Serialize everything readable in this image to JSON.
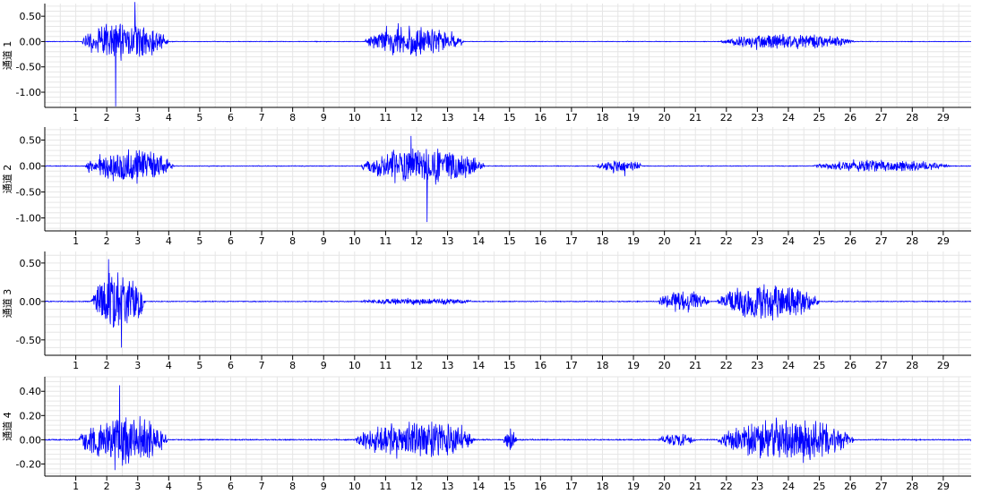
{
  "colors": {
    "signal": "#0000ff",
    "grid": "#e6e6e6",
    "axis": "#000000",
    "background": "#ffffff"
  },
  "chart_data": [
    {
      "type": "line",
      "ylabel": "通道 1",
      "xlim": [
        0,
        29.9
      ],
      "ylim": [
        -1.3,
        0.75
      ],
      "x_ticks": [
        1,
        2,
        3,
        4,
        5,
        6,
        7,
        8,
        9,
        10,
        11,
        12,
        13,
        14,
        15,
        16,
        17,
        18,
        19,
        20,
        21,
        22,
        23,
        24,
        25,
        26,
        27,
        28,
        29
      ],
      "y_ticks": [
        0.5,
        0.0,
        -0.5,
        -1.0
      ],
      "y_tick_labels": [
        "0.50",
        "0.00",
        "-0.50",
        "-1.00"
      ],
      "grid": true,
      "series": [
        {
          "peak_min": -1.28,
          "peak_max": 0.78,
          "noise": 0.005,
          "bursts": [
            {
              "start": 1.2,
              "end": 4.4,
              "amp": 0.45
            },
            {
              "start": 10.3,
              "end": 14.0,
              "amp": 0.33
            },
            {
              "start": 21.8,
              "end": 26.8,
              "amp": 0.18
            }
          ]
        }
      ]
    },
    {
      "type": "line",
      "ylabel": "通道 2",
      "xlim": [
        0,
        29.9
      ],
      "ylim": [
        -1.25,
        0.75
      ],
      "x_ticks": [
        1,
        2,
        3,
        4,
        5,
        6,
        7,
        8,
        9,
        10,
        11,
        12,
        13,
        14,
        15,
        16,
        17,
        18,
        19,
        20,
        21,
        22,
        23,
        24,
        25,
        26,
        27,
        28,
        29
      ],
      "y_ticks": [
        0.5,
        0.0,
        -0.5,
        -1.0
      ],
      "y_tick_labels": [
        "0.50",
        "0.00",
        "-0.50",
        "-1.00"
      ],
      "grid": true,
      "series": [
        {
          "peak_min": -1.08,
          "peak_max": 0.58,
          "noise": 0.006,
          "bursts": [
            {
              "start": 1.3,
              "end": 4.6,
              "amp": 0.38
            },
            {
              "start": 10.2,
              "end": 14.8,
              "amp": 0.4
            },
            {
              "start": 17.8,
              "end": 19.5,
              "amp": 0.16
            },
            {
              "start": 24.8,
              "end": 29.9,
              "amp": 0.13
            }
          ]
        }
      ]
    },
    {
      "type": "line",
      "ylabel": "通道 3",
      "xlim": [
        0,
        29.9
      ],
      "ylim": [
        -0.7,
        0.65
      ],
      "x_ticks": [
        1,
        2,
        3,
        4,
        5,
        6,
        7,
        8,
        9,
        10,
        11,
        12,
        13,
        14,
        15,
        16,
        17,
        18,
        19,
        20,
        21,
        22,
        23,
        24,
        25,
        26,
        27,
        28,
        29
      ],
      "y_ticks": [
        0.5,
        0.0,
        -0.5
      ],
      "y_tick_labels": [
        "0.50",
        "0.00",
        "-0.50"
      ],
      "grid": true,
      "series": [
        {
          "peak_min": -0.6,
          "peak_max": 0.55,
          "noise": 0.005,
          "bursts": [
            {
              "start": 1.5,
              "end": 3.5,
              "amp": 0.45
            },
            {
              "start": 10.1,
              "end": 14.5,
              "amp": 0.05
            },
            {
              "start": 19.8,
              "end": 21.7,
              "amp": 0.16
            },
            {
              "start": 21.7,
              "end": 25.5,
              "amp": 0.28
            }
          ]
        }
      ]
    },
    {
      "type": "line",
      "ylabel": "通道 4",
      "xlim": [
        0,
        29.9
      ],
      "ylim": [
        -0.3,
        0.52
      ],
      "x_ticks": [
        1,
        2,
        3,
        4,
        5,
        6,
        7,
        8,
        9,
        10,
        11,
        12,
        13,
        14,
        15,
        16,
        17,
        18,
        19,
        20,
        21,
        22,
        23,
        24,
        25,
        26,
        27,
        28,
        29
      ],
      "y_ticks": [
        0.4,
        0.2,
        0.0,
        -0.2
      ],
      "y_tick_labels": [
        "0.40",
        "0.20",
        "0.00",
        "-0.20"
      ],
      "grid": true,
      "series": [
        {
          "peak_min": -0.25,
          "peak_max": 0.45,
          "noise": 0.004,
          "bursts": [
            {
              "start": 1.1,
              "end": 4.4,
              "amp": 0.24
            },
            {
              "start": 10.0,
              "end": 14.5,
              "amp": 0.18
            },
            {
              "start": 14.8,
              "end": 15.3,
              "amp": 0.12
            },
            {
              "start": 19.8,
              "end": 21.2,
              "amp": 0.06
            },
            {
              "start": 21.7,
              "end": 26.8,
              "amp": 0.2
            }
          ]
        }
      ]
    }
  ]
}
